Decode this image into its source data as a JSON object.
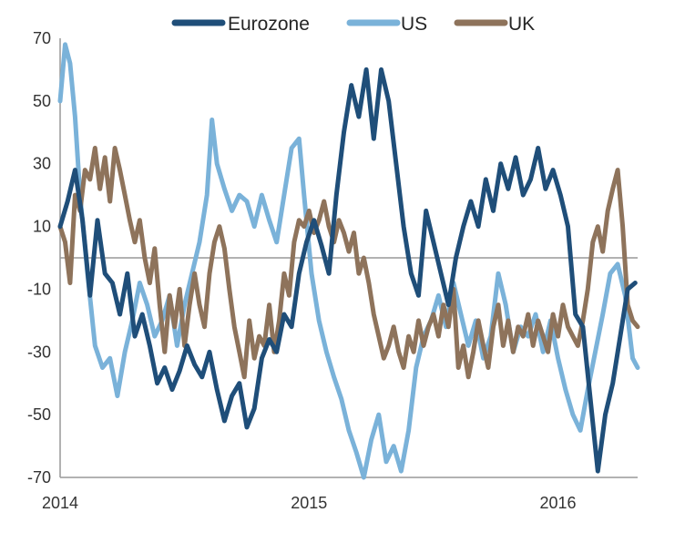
{
  "chart_data": {
    "type": "line",
    "title": "",
    "xlabel": "",
    "ylabel": "",
    "ylim": [
      -70,
      70
    ],
    "xlim": [
      2014.0,
      2016.32
    ],
    "y_ticks": [
      70,
      50,
      30,
      10,
      -10,
      -30,
      -50,
      -70
    ],
    "y_tick_labels": [
      "70",
      "50",
      "30",
      "10",
      "-10",
      "-30",
      "-50",
      "-70"
    ],
    "x_ticks": [
      2014,
      2015,
      2016
    ],
    "x_tick_labels": [
      "2014",
      "2015",
      "2016"
    ],
    "zero_line": 0,
    "legend_position": "top",
    "series": [
      {
        "name": "Eurozone",
        "color": "#1f4e79",
        "points": [
          [
            2014.0,
            10
          ],
          [
            2014.03,
            18
          ],
          [
            2014.06,
            28
          ],
          [
            2014.09,
            12
          ],
          [
            2014.12,
            -12
          ],
          [
            2014.15,
            12
          ],
          [
            2014.18,
            -5
          ],
          [
            2014.21,
            -8
          ],
          [
            2014.24,
            -18
          ],
          [
            2014.27,
            -5
          ],
          [
            2014.3,
            -25
          ],
          [
            2014.33,
            -18
          ],
          [
            2014.36,
            -28
          ],
          [
            2014.39,
            -40
          ],
          [
            2014.42,
            -35
          ],
          [
            2014.45,
            -42
          ],
          [
            2014.48,
            -36
          ],
          [
            2014.51,
            -28
          ],
          [
            2014.54,
            -34
          ],
          [
            2014.57,
            -38
          ],
          [
            2014.6,
            -30
          ],
          [
            2014.63,
            -42
          ],
          [
            2014.66,
            -52
          ],
          [
            2014.69,
            -44
          ],
          [
            2014.72,
            -40
          ],
          [
            2014.75,
            -54
          ],
          [
            2014.78,
            -48
          ],
          [
            2014.81,
            -32
          ],
          [
            2014.84,
            -26
          ],
          [
            2014.87,
            -30
          ],
          [
            2014.9,
            -18
          ],
          [
            2014.93,
            -22
          ],
          [
            2014.96,
            -5
          ],
          [
            2014.99,
            5
          ],
          [
            2015.02,
            12
          ],
          [
            2015.05,
            4
          ],
          [
            2015.08,
            -5
          ],
          [
            2015.11,
            20
          ],
          [
            2015.14,
            40
          ],
          [
            2015.17,
            55
          ],
          [
            2015.2,
            45
          ],
          [
            2015.23,
            60
          ],
          [
            2015.26,
            38
          ],
          [
            2015.29,
            60
          ],
          [
            2015.32,
            50
          ],
          [
            2015.35,
            30
          ],
          [
            2015.38,
            10
          ],
          [
            2015.41,
            -5
          ],
          [
            2015.44,
            -12
          ],
          [
            2015.47,
            15
          ],
          [
            2015.5,
            5
          ],
          [
            2015.53,
            -5
          ],
          [
            2015.56,
            -15
          ],
          [
            2015.59,
            0
          ],
          [
            2015.62,
            10
          ],
          [
            2015.65,
            18
          ],
          [
            2015.68,
            10
          ],
          [
            2015.71,
            25
          ],
          [
            2015.74,
            15
          ],
          [
            2015.77,
            30
          ],
          [
            2015.8,
            22
          ],
          [
            2015.83,
            32
          ],
          [
            2015.86,
            20
          ],
          [
            2015.89,
            25
          ],
          [
            2015.92,
            35
          ],
          [
            2015.95,
            22
          ],
          [
            2015.98,
            28
          ],
          [
            2016.01,
            20
          ],
          [
            2016.04,
            10
          ],
          [
            2016.07,
            -18
          ],
          [
            2016.1,
            -22
          ],
          [
            2016.13,
            -45
          ],
          [
            2016.16,
            -68
          ],
          [
            2016.19,
            -50
          ],
          [
            2016.22,
            -40
          ],
          [
            2016.25,
            -25
          ],
          [
            2016.28,
            -10
          ],
          [
            2016.31,
            -8
          ]
        ]
      },
      {
        "name": "US",
        "color": "#7ab2d9",
        "points": [
          [
            2014.0,
            50
          ],
          [
            2014.02,
            68
          ],
          [
            2014.04,
            62
          ],
          [
            2014.06,
            45
          ],
          [
            2014.08,
            20
          ],
          [
            2014.11,
            -5
          ],
          [
            2014.14,
            -28
          ],
          [
            2014.17,
            -35
          ],
          [
            2014.2,
            -32
          ],
          [
            2014.23,
            -44
          ],
          [
            2014.26,
            -30
          ],
          [
            2014.29,
            -20
          ],
          [
            2014.32,
            -8
          ],
          [
            2014.35,
            -15
          ],
          [
            2014.38,
            -25
          ],
          [
            2014.41,
            -20
          ],
          [
            2014.44,
            -12
          ],
          [
            2014.47,
            -28
          ],
          [
            2014.5,
            -15
          ],
          [
            2014.53,
            -5
          ],
          [
            2014.56,
            5
          ],
          [
            2014.59,
            20
          ],
          [
            2014.61,
            44
          ],
          [
            2014.63,
            30
          ],
          [
            2014.66,
            22
          ],
          [
            2014.69,
            15
          ],
          [
            2014.72,
            20
          ],
          [
            2014.75,
            18
          ],
          [
            2014.78,
            10
          ],
          [
            2014.81,
            20
          ],
          [
            2014.84,
            12
          ],
          [
            2014.87,
            5
          ],
          [
            2014.9,
            20
          ],
          [
            2014.93,
            35
          ],
          [
            2014.96,
            38
          ],
          [
            2014.98,
            20
          ],
          [
            2015.01,
            -5
          ],
          [
            2015.04,
            -20
          ],
          [
            2015.07,
            -30
          ],
          [
            2015.1,
            -38
          ],
          [
            2015.13,
            -45
          ],
          [
            2015.16,
            -55
          ],
          [
            2015.19,
            -62
          ],
          [
            2015.22,
            -70
          ],
          [
            2015.25,
            -58
          ],
          [
            2015.28,
            -50
          ],
          [
            2015.31,
            -65
          ],
          [
            2015.34,
            -60
          ],
          [
            2015.37,
            -68
          ],
          [
            2015.4,
            -55
          ],
          [
            2015.43,
            -35
          ],
          [
            2015.46,
            -25
          ],
          [
            2015.49,
            -20
          ],
          [
            2015.52,
            -12
          ],
          [
            2015.55,
            -22
          ],
          [
            2015.58,
            -8
          ],
          [
            2015.61,
            -18
          ],
          [
            2015.64,
            -28
          ],
          [
            2015.67,
            -20
          ],
          [
            2015.7,
            -32
          ],
          [
            2015.73,
            -25
          ],
          [
            2015.76,
            -5
          ],
          [
            2015.79,
            -15
          ],
          [
            2015.82,
            -30
          ],
          [
            2015.85,
            -22
          ],
          [
            2015.88,
            -25
          ],
          [
            2015.91,
            -18
          ],
          [
            2015.94,
            -30
          ],
          [
            2015.97,
            -20
          ],
          [
            2016.0,
            -32
          ],
          [
            2016.03,
            -42
          ],
          [
            2016.06,
            -50
          ],
          [
            2016.09,
            -55
          ],
          [
            2016.12,
            -42
          ],
          [
            2016.15,
            -30
          ],
          [
            2016.18,
            -18
          ],
          [
            2016.21,
            -5
          ],
          [
            2016.24,
            -2
          ],
          [
            2016.27,
            -12
          ],
          [
            2016.3,
            -32
          ],
          [
            2016.32,
            -35
          ]
        ]
      },
      {
        "name": "UK",
        "color": "#8e735b",
        "points": [
          [
            2014.0,
            10
          ],
          [
            2014.02,
            5
          ],
          [
            2014.04,
            -8
          ],
          [
            2014.06,
            20
          ],
          [
            2014.08,
            15
          ],
          [
            2014.1,
            28
          ],
          [
            2014.12,
            25
          ],
          [
            2014.14,
            35
          ],
          [
            2014.16,
            22
          ],
          [
            2014.18,
            32
          ],
          [
            2014.2,
            18
          ],
          [
            2014.22,
            35
          ],
          [
            2014.24,
            28
          ],
          [
            2014.26,
            20
          ],
          [
            2014.28,
            12
          ],
          [
            2014.3,
            5
          ],
          [
            2014.32,
            12
          ],
          [
            2014.34,
            0
          ],
          [
            2014.36,
            -8
          ],
          [
            2014.38,
            3
          ],
          [
            2014.4,
            -15
          ],
          [
            2014.42,
            -30
          ],
          [
            2014.44,
            -12
          ],
          [
            2014.46,
            -22
          ],
          [
            2014.48,
            -10
          ],
          [
            2014.5,
            -28
          ],
          [
            2014.52,
            -15
          ],
          [
            2014.54,
            -5
          ],
          [
            2014.56,
            -15
          ],
          [
            2014.58,
            -22
          ],
          [
            2014.6,
            -5
          ],
          [
            2014.62,
            5
          ],
          [
            2014.64,
            10
          ],
          [
            2014.66,
            3
          ],
          [
            2014.68,
            -10
          ],
          [
            2014.7,
            -22
          ],
          [
            2014.72,
            -30
          ],
          [
            2014.74,
            -38
          ],
          [
            2014.76,
            -20
          ],
          [
            2014.78,
            -32
          ],
          [
            2014.8,
            -25
          ],
          [
            2014.82,
            -28
          ],
          [
            2014.84,
            -15
          ],
          [
            2014.86,
            -30
          ],
          [
            2014.88,
            -20
          ],
          [
            2014.9,
            -5
          ],
          [
            2014.92,
            -12
          ],
          [
            2014.94,
            5
          ],
          [
            2014.96,
            12
          ],
          [
            2014.98,
            10
          ],
          [
            2015.0,
            15
          ],
          [
            2015.02,
            8
          ],
          [
            2015.04,
            12
          ],
          [
            2015.06,
            18
          ],
          [
            2015.08,
            10
          ],
          [
            2015.1,
            5
          ],
          [
            2015.12,
            12
          ],
          [
            2015.14,
            8
          ],
          [
            2015.16,
            2
          ],
          [
            2015.18,
            8
          ],
          [
            2015.2,
            -5
          ],
          [
            2015.22,
            0
          ],
          [
            2015.24,
            -8
          ],
          [
            2015.26,
            -18
          ],
          [
            2015.28,
            -25
          ],
          [
            2015.3,
            -32
          ],
          [
            2015.32,
            -28
          ],
          [
            2015.34,
            -22
          ],
          [
            2015.36,
            -30
          ],
          [
            2015.38,
            -35
          ],
          [
            2015.4,
            -25
          ],
          [
            2015.42,
            -30
          ],
          [
            2015.44,
            -20
          ],
          [
            2015.46,
            -28
          ],
          [
            2015.48,
            -22
          ],
          [
            2015.5,
            -18
          ],
          [
            2015.52,
            -25
          ],
          [
            2015.54,
            -15
          ],
          [
            2015.56,
            -22
          ],
          [
            2015.58,
            -10
          ],
          [
            2015.6,
            -35
          ],
          [
            2015.62,
            -28
          ],
          [
            2015.64,
            -38
          ],
          [
            2015.66,
            -30
          ],
          [
            2015.68,
            -20
          ],
          [
            2015.7,
            -28
          ],
          [
            2015.72,
            -35
          ],
          [
            2015.74,
            -22
          ],
          [
            2015.76,
            -15
          ],
          [
            2015.78,
            -28
          ],
          [
            2015.8,
            -20
          ],
          [
            2015.82,
            -30
          ],
          [
            2015.84,
            -22
          ],
          [
            2015.86,
            -25
          ],
          [
            2015.88,
            -18
          ],
          [
            2015.9,
            -28
          ],
          [
            2015.92,
            -20
          ],
          [
            2015.94,
            -25
          ],
          [
            2015.96,
            -30
          ],
          [
            2015.98,
            -18
          ],
          [
            2016.0,
            -25
          ],
          [
            2016.02,
            -15
          ],
          [
            2016.04,
            -22
          ],
          [
            2016.06,
            -25
          ],
          [
            2016.08,
            -28
          ],
          [
            2016.1,
            -20
          ],
          [
            2016.12,
            -10
          ],
          [
            2016.14,
            5
          ],
          [
            2016.16,
            10
          ],
          [
            2016.18,
            2
          ],
          [
            2016.2,
            15
          ],
          [
            2016.22,
            22
          ],
          [
            2016.24,
            28
          ],
          [
            2016.26,
            10
          ],
          [
            2016.28,
            -15
          ],
          [
            2016.3,
            -20
          ],
          [
            2016.32,
            -22
          ]
        ]
      }
    ]
  }
}
